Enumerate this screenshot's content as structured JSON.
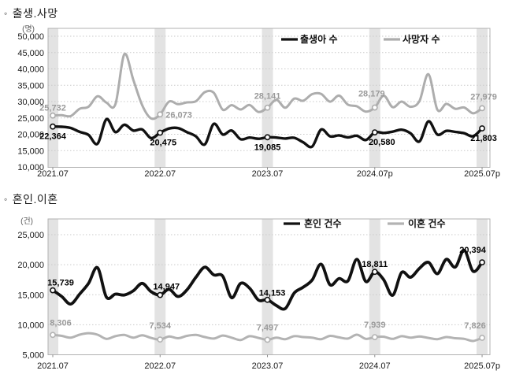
{
  "style": {
    "background": "#ffffff",
    "band_color": "#e3e3e3",
    "grid_color": "#c9c9c9",
    "border_color": "#b2b2b2",
    "tick_color": "#888888",
    "black_series_color": "#111111",
    "gray_series_color": "#adadad"
  },
  "chart_data": [
    {
      "type": "line",
      "bullet": "◦",
      "title": "출생.사망",
      "unit_label": "(명)",
      "x_range_months": [
        "2021.07",
        "2025.07"
      ],
      "x_tick_labels": [
        "2021.07",
        "2022.07",
        "2023.07",
        "2024.07p",
        "2025.07p"
      ],
      "y_tick_labels": [
        "50,000",
        "45,000",
        "40,000",
        "35,000",
        "30,000",
        "25,000",
        "20,000",
        "15,000",
        "10,000"
      ],
      "ylim": [
        10000,
        52400
      ],
      "grid": "dotted-horizontal",
      "legend_position": "top-inside",
      "labeled_indices": [
        0,
        12,
        24,
        36,
        48
      ],
      "highlight_band_indices": [
        0,
        12,
        24,
        36,
        48
      ],
      "series": [
        {
          "name": "출생아 수",
          "color": "#111111",
          "stroke_width": 3.4,
          "label_color": "#000000",
          "label_side": "below",
          "values": [
            22364,
            22291,
            21920,
            20736,
            19800,
            17100,
            24598,
            20654,
            22925,
            21124,
            21472,
            18830,
            20475,
            21758,
            21885,
            20658,
            19362,
            16896,
            23179,
            19939,
            21138,
            18484,
            18988,
            18615,
            19085,
            18984,
            18707,
            18904,
            17531,
            16253,
            21442,
            19362,
            19669,
            19049,
            19547,
            18242,
            20580,
            20400,
            20800,
            21398,
            20300,
            17800,
            23947,
            19900,
            21041,
            20717,
            20309,
            19400,
            21803
          ],
          "point_labels": {
            "0": "22,364",
            "12": "20,475",
            "24": "19,085",
            "36": "20,580",
            "48": "21,803"
          }
        },
        {
          "name": "사망자 수",
          "color": "#adadad",
          "stroke_width": 3,
          "label_color": "#9a9a9a",
          "label_side": "above",
          "values": [
            25732,
            25837,
            25566,
            27783,
            28426,
            31634,
            29686,
            29189,
            44487,
            36697,
            28859,
            24850,
            26073,
            30001,
            29199,
            29763,
            30107,
            32900,
            32700,
            27554,
            28922,
            27581,
            28958,
            26820,
            28141,
            30540,
            28130,
            30904,
            30255,
            32280,
            32371,
            29977,
            31839,
            29070,
            28546,
            26942,
            28179,
            31800,
            28300,
            30000,
            28400,
            30200,
            38384,
            27500,
            29300,
            27800,
            28200,
            26400,
            27979
          ],
          "point_labels": {
            "0": "25,732",
            "12": "26,073",
            "24": "28,141",
            "36": "28,179",
            "48": "27,979"
          }
        }
      ]
    },
    {
      "type": "line",
      "bullet": "◦",
      "title": "혼인.이혼",
      "unit_label": "(건)",
      "x_range_months": [
        "2021.07",
        "2025.07"
      ],
      "x_tick_labels": [
        "2021.07",
        "2022.07",
        "2023.07",
        "2024.07",
        "2025.07p"
      ],
      "y_tick_labels": [
        "25,000",
        "20,000",
        "15,000",
        "10,000",
        "5,000"
      ],
      "ylim": [
        5000,
        27700
      ],
      "grid": "dotted-horizontal",
      "legend_position": "top-inside",
      "labeled_indices": [
        0,
        12,
        24,
        36,
        48
      ],
      "highlight_band_indices": [
        0,
        12,
        24,
        36,
        48
      ],
      "series": [
        {
          "name": "혼인 건수",
          "color": "#111111",
          "stroke_width": 3.8,
          "label_color": "#000000",
          "label_side": "above",
          "values": [
            15739,
            14700,
            13450,
            15100,
            16900,
            19500,
            14600,
            15100,
            14950,
            15650,
            16900,
            15500,
            14947,
            15900,
            14700,
            15800,
            17900,
            19600,
            18300,
            18100,
            14500,
            16900,
            16100,
            14100,
            14153,
            13200,
            12700,
            15300,
            16250,
            17450,
            20100,
            16650,
            17700,
            17300,
            20900,
            17200,
            18811,
            17500,
            14900,
            18700,
            17900,
            19400,
            20400,
            18500,
            20900,
            19600,
            22400,
            18900,
            20394
          ],
          "point_labels": {
            "0": "15,739",
            "12": "14,947",
            "24": "14,153",
            "36": "18,811",
            "48": "20,394"
          }
        },
        {
          "name": "이혼 건수",
          "color": "#b3b3b3",
          "stroke_width": 3,
          "label_color": "#9a9a9a",
          "label_side": "above",
          "values": [
            8306,
            8150,
            7850,
            8350,
            8600,
            8350,
            7650,
            8100,
            8300,
            7850,
            8250,
            7800,
            7534,
            8050,
            7750,
            8150,
            8300,
            7950,
            7700,
            8200,
            7850,
            7450,
            8100,
            7800,
            7497,
            7850,
            7600,
            8100,
            7950,
            7850,
            7600,
            8150,
            7900,
            7700,
            8350,
            7650,
            7939,
            8000,
            7650,
            8100,
            7850,
            8050,
            7800,
            7600,
            7950,
            7750,
            7650,
            7300,
            7826
          ],
          "point_labels": {
            "0": "8,306",
            "12": "7,534",
            "24": "7,497",
            "36": "7,939",
            "48": "7,826"
          }
        }
      ]
    }
  ]
}
